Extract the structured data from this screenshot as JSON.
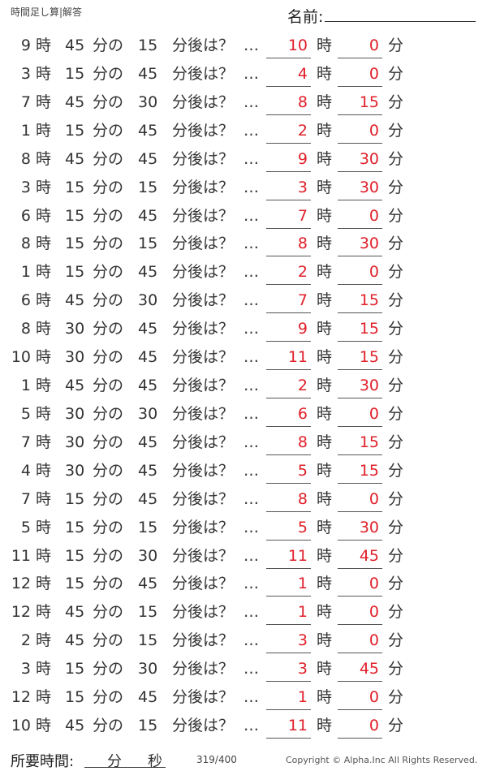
{
  "header": {
    "title": "時間足し算|解答",
    "name_label": "名前:"
  },
  "labels": {
    "hour": "時",
    "min_of": "分の",
    "min_after": "分後は？",
    "ellipsis": "…",
    "answer_hour": "時",
    "answer_min": "分"
  },
  "answer_color": "#e0202a",
  "problems": [
    {
      "h": "9",
      "m": "45",
      "add": "15",
      "ah": "10",
      "am": "0"
    },
    {
      "h": "3",
      "m": "15",
      "add": "45",
      "ah": "4",
      "am": "0"
    },
    {
      "h": "7",
      "m": "45",
      "add": "30",
      "ah": "8",
      "am": "15"
    },
    {
      "h": "1",
      "m": "15",
      "add": "45",
      "ah": "2",
      "am": "0"
    },
    {
      "h": "8",
      "m": "45",
      "add": "45",
      "ah": "9",
      "am": "30"
    },
    {
      "h": "3",
      "m": "15",
      "add": "15",
      "ah": "3",
      "am": "30"
    },
    {
      "h": "6",
      "m": "15",
      "add": "45",
      "ah": "7",
      "am": "0"
    },
    {
      "h": "8",
      "m": "15",
      "add": "15",
      "ah": "8",
      "am": "30"
    },
    {
      "h": "1",
      "m": "15",
      "add": "45",
      "ah": "2",
      "am": "0"
    },
    {
      "h": "6",
      "m": "45",
      "add": "30",
      "ah": "7",
      "am": "15"
    },
    {
      "h": "8",
      "m": "30",
      "add": "45",
      "ah": "9",
      "am": "15"
    },
    {
      "h": "10",
      "m": "30",
      "add": "45",
      "ah": "11",
      "am": "15"
    },
    {
      "h": "1",
      "m": "45",
      "add": "45",
      "ah": "2",
      "am": "30"
    },
    {
      "h": "5",
      "m": "30",
      "add": "30",
      "ah": "6",
      "am": "0"
    },
    {
      "h": "7",
      "m": "30",
      "add": "45",
      "ah": "8",
      "am": "15"
    },
    {
      "h": "4",
      "m": "30",
      "add": "45",
      "ah": "5",
      "am": "15"
    },
    {
      "h": "7",
      "m": "15",
      "add": "45",
      "ah": "8",
      "am": "0"
    },
    {
      "h": "5",
      "m": "15",
      "add": "15",
      "ah": "5",
      "am": "30"
    },
    {
      "h": "11",
      "m": "15",
      "add": "30",
      "ah": "11",
      "am": "45"
    },
    {
      "h": "12",
      "m": "15",
      "add": "45",
      "ah": "1",
      "am": "0"
    },
    {
      "h": "12",
      "m": "45",
      "add": "15",
      "ah": "1",
      "am": "0"
    },
    {
      "h": "2",
      "m": "45",
      "add": "15",
      "ah": "3",
      "am": "0"
    },
    {
      "h": "3",
      "m": "15",
      "add": "30",
      "ah": "3",
      "am": "45"
    },
    {
      "h": "12",
      "m": "15",
      "add": "45",
      "ah": "1",
      "am": "0"
    },
    {
      "h": "10",
      "m": "45",
      "add": "15",
      "ah": "11",
      "am": "0"
    }
  ],
  "footer": {
    "time_label": "所要時間:",
    "min": "分",
    "sec": "秒",
    "page": "319/400",
    "copyright": "Copyright ©  Alpha.Inc All Rights Reserved."
  }
}
